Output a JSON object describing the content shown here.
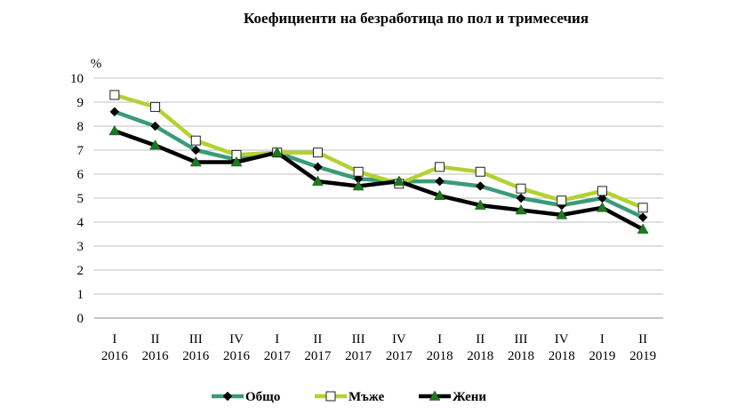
{
  "chart_data": {
    "type": "line",
    "title": "Коефициенти на безработица по пол и тримесечия",
    "ylabel": "%",
    "xlabel": "",
    "ylim": [
      0,
      10
    ],
    "y_ticks": [
      "0",
      "1",
      "2",
      "3",
      "4",
      "5",
      "6",
      "7",
      "8",
      "9",
      "10"
    ],
    "grid": true,
    "legend_position": "bottom",
    "categories": [
      {
        "quarter": "I",
        "year": "2016"
      },
      {
        "quarter": "II",
        "year": "2016"
      },
      {
        "quarter": "III",
        "year": "2016"
      },
      {
        "quarter": "IV",
        "year": "2016"
      },
      {
        "quarter": "I",
        "year": "2017"
      },
      {
        "quarter": "II",
        "year": "2017"
      },
      {
        "quarter": "III",
        "year": "2017"
      },
      {
        "quarter": "IV",
        "year": "2017"
      },
      {
        "quarter": "I",
        "year": "2018"
      },
      {
        "quarter": "II",
        "year": "2018"
      },
      {
        "quarter": "III",
        "year": "2018"
      },
      {
        "quarter": "IV",
        "year": "2018"
      },
      {
        "quarter": "I",
        "year": "2019"
      },
      {
        "quarter": "II",
        "year": "2019"
      }
    ],
    "series": [
      {
        "name": "Общо",
        "color": "#3a9a7a",
        "marker": "diamond",
        "marker_color": "#000000",
        "values": [
          8.6,
          8.0,
          7.0,
          6.6,
          6.9,
          6.3,
          5.8,
          5.7,
          5.7,
          5.5,
          5.0,
          4.7,
          5.0,
          4.2
        ]
      },
      {
        "name": "Мъже",
        "color": "#b2d233",
        "marker": "square",
        "marker_color": "#ffffff",
        "values": [
          9.3,
          8.8,
          7.4,
          6.8,
          6.9,
          6.9,
          6.1,
          5.6,
          6.3,
          6.1,
          5.4,
          4.9,
          5.3,
          4.6
        ]
      },
      {
        "name": "Жени",
        "color": "#000000",
        "marker": "triangle",
        "marker_color": "#1f7a1f",
        "values": [
          7.8,
          7.2,
          6.5,
          6.5,
          6.9,
          5.7,
          5.5,
          5.7,
          5.1,
          4.7,
          4.5,
          4.3,
          4.6,
          3.7
        ]
      }
    ]
  }
}
